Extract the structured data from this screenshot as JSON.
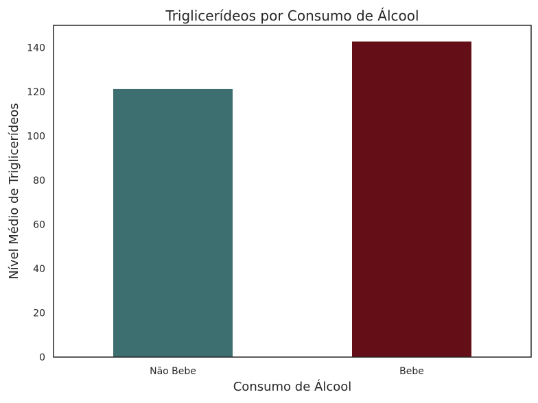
{
  "chart_data": {
    "type": "bar",
    "title": "Triglicerídeos por Consumo de Álcool",
    "xlabel": "Consumo de Álcool",
    "ylabel": "Nível Médio de Triglicerídeos",
    "categories": [
      "Não Bebe",
      "Bebe"
    ],
    "values": [
      121.2,
      142.7
    ],
    "colors": [
      "#3d6e70",
      "#640f17"
    ],
    "ylim": [
      0,
      150
    ],
    "yticks": [
      0,
      20,
      40,
      60,
      80,
      100,
      120,
      140
    ],
    "grid": false,
    "legend": "none"
  }
}
